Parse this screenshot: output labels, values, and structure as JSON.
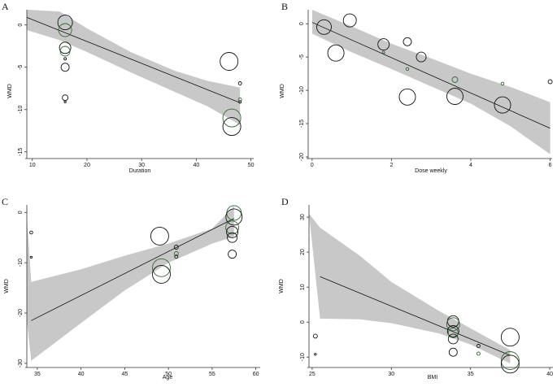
{
  "chart_data": [
    {
      "type": "scatter",
      "panel": "A",
      "xlabel": "Duration",
      "ylabel": "WMD",
      "xlim": [
        9,
        50.5
      ],
      "ylim": [
        -15.6,
        1.8
      ],
      "xticks": [
        10,
        20,
        30,
        40,
        50
      ],
      "yticks": [
        0,
        -5,
        -10,
        -15
      ],
      "fit": [
        [
          9,
          0.9
        ],
        [
          48,
          -9.2
        ]
      ],
      "band_upper": [
        [
          9,
          1.8
        ],
        [
          15,
          1.6
        ],
        [
          20,
          -0.4
        ],
        [
          28,
          -3.2
        ],
        [
          36,
          -5.4
        ],
        [
          42,
          -6.6
        ],
        [
          48,
          -7.4
        ]
      ],
      "band_lower": [
        [
          9,
          -0.6
        ],
        [
          15,
          -1.8
        ],
        [
          20,
          -3.2
        ],
        [
          28,
          -5.6
        ],
        [
          36,
          -7.9
        ],
        [
          42,
          -9.6
        ],
        [
          48,
          -11.8
        ]
      ],
      "points": [
        {
          "x": 16,
          "y": 0.3,
          "r": 9,
          "color": "black"
        },
        {
          "x": 16,
          "y": -0.6,
          "r": 8,
          "color": "green"
        },
        {
          "x": 16,
          "y": -2.7,
          "r": 7,
          "color": "black"
        },
        {
          "x": 16,
          "y": -3.1,
          "r": 6,
          "color": "green"
        },
        {
          "x": 16,
          "y": -4.0,
          "r": 1.5,
          "color": "black"
        },
        {
          "x": 16,
          "y": -5.0,
          "r": 5,
          "color": "black"
        },
        {
          "x": 16,
          "y": -8.6,
          "r": 3.5,
          "color": "black"
        },
        {
          "x": 16,
          "y": -9.1,
          "r": 1.2,
          "color": "black"
        },
        {
          "x": 46,
          "y": -4.3,
          "r": 11,
          "color": "black"
        },
        {
          "x": 46.5,
          "y": -11.0,
          "r": 11,
          "color": "green"
        },
        {
          "x": 46.5,
          "y": -12.0,
          "r": 11,
          "color": "black"
        },
        {
          "x": 48,
          "y": -6.9,
          "r": 2,
          "color": "black"
        },
        {
          "x": 48,
          "y": -8.8,
          "r": 2,
          "color": "green"
        },
        {
          "x": 48,
          "y": -9.1,
          "r": 1.5,
          "color": "black"
        }
      ]
    },
    {
      "type": "scatter",
      "panel": "B",
      "xlabel": "Dose weekly",
      "ylabel": "WMD",
      "xlim": [
        -0.1,
        6.05
      ],
      "ylim": [
        -20,
        2.1
      ],
      "xticks": [
        0,
        2,
        4,
        6
      ],
      "yticks": [
        0,
        -5,
        -10,
        -15,
        -20
      ],
      "fit": [
        [
          0,
          0.2
        ],
        [
          6,
          -15.7
        ]
      ],
      "band_upper": [
        [
          0,
          2.1
        ],
        [
          1,
          -0.4
        ],
        [
          2,
          -3.0
        ],
        [
          3,
          -5.2
        ],
        [
          4,
          -7.5
        ],
        [
          5,
          -9.5
        ],
        [
          6,
          -11.8
        ]
      ],
      "band_lower": [
        [
          0,
          -1.5
        ],
        [
          1,
          -4.3
        ],
        [
          2,
          -6.8
        ],
        [
          3,
          -9.4
        ],
        [
          4,
          -12.0
        ],
        [
          5,
          -15.4
        ],
        [
          6,
          -19.6
        ]
      ],
      "points": [
        {
          "x": 0.3,
          "y": -0.5,
          "r": 9,
          "color": "black"
        },
        {
          "x": 0.95,
          "y": 0.5,
          "r": 8,
          "color": "black"
        },
        {
          "x": 0.6,
          "y": -4.4,
          "r": 10,
          "color": "black"
        },
        {
          "x": 1.8,
          "y": -3.1,
          "r": 7,
          "color": "black"
        },
        {
          "x": 1.8,
          "y": -4.3,
          "r": 1.5,
          "color": "green"
        },
        {
          "x": 2.4,
          "y": -2.7,
          "r": 5,
          "color": "black"
        },
        {
          "x": 2.4,
          "y": -6.8,
          "r": 1.8,
          "color": "green"
        },
        {
          "x": 2.4,
          "y": -11.0,
          "r": 10,
          "color": "black"
        },
        {
          "x": 2.75,
          "y": -5.0,
          "r": 6,
          "color": "black"
        },
        {
          "x": 3.6,
          "y": -8.4,
          "r": 3.5,
          "color": "green"
        },
        {
          "x": 3.6,
          "y": -10.9,
          "r": 10,
          "color": "black"
        },
        {
          "x": 4.8,
          "y": -9.0,
          "r": 1.8,
          "color": "green"
        },
        {
          "x": 4.8,
          "y": -12.2,
          "r": 10,
          "color": "black"
        },
        {
          "x": 6.0,
          "y": -8.7,
          "r": 2.5,
          "color": "black"
        }
      ]
    },
    {
      "type": "scatter",
      "panel": "C",
      "xlabel": "Age",
      "ylabel": "WMD",
      "xlim": [
        33.8,
        60.5
      ],
      "ylim": [
        -30.5,
        1.5
      ],
      "xticks": [
        35,
        40,
        45,
        50,
        55,
        60
      ],
      "yticks": [
        0,
        -10,
        -20,
        -30
      ],
      "fit": [
        [
          34.3,
          -21.5
        ],
        [
          57.5,
          -1.2
        ]
      ],
      "band_upper": [
        [
          33.8,
          -0.5
        ],
        [
          34.3,
          -13.8
        ],
        [
          40,
          -11.3
        ],
        [
          45,
          -8.6
        ],
        [
          50,
          -6.2
        ],
        [
          55,
          -3.2
        ],
        [
          57.5,
          1.2
        ]
      ],
      "band_lower": [
        [
          33.8,
          -21.5
        ],
        [
          34.3,
          -29.5
        ],
        [
          40,
          -22.0
        ],
        [
          45,
          -15.5
        ],
        [
          50,
          -10.0
        ],
        [
          55,
          -6.2
        ],
        [
          57.5,
          -4.8
        ]
      ],
      "points": [
        {
          "x": 34.3,
          "y": -4.0,
          "r": 1.8,
          "color": "black"
        },
        {
          "x": 34.3,
          "y": -8.9,
          "r": 1.2,
          "color": "black"
        },
        {
          "x": 49,
          "y": -4.7,
          "r": 11,
          "color": "black"
        },
        {
          "x": 49.2,
          "y": -11.0,
          "r": 11,
          "color": "green"
        },
        {
          "x": 49.2,
          "y": -12.3,
          "r": 11,
          "color": "black"
        },
        {
          "x": 50.9,
          "y": -6.9,
          "r": 2.5,
          "color": "black"
        },
        {
          "x": 50.9,
          "y": -8.2,
          "r": 2.5,
          "color": "green"
        },
        {
          "x": 50.9,
          "y": -8.8,
          "r": 2,
          "color": "black"
        },
        {
          "x": 57.5,
          "y": -0.1,
          "r": 9,
          "color": "green"
        },
        {
          "x": 57.5,
          "y": -0.9,
          "r": 10,
          "color": "black"
        },
        {
          "x": 57.3,
          "y": -3.0,
          "r": 8,
          "color": "green"
        },
        {
          "x": 57.3,
          "y": -3.9,
          "r": 7,
          "color": "black"
        },
        {
          "x": 57.3,
          "y": -5.0,
          "r": 6,
          "color": "black"
        },
        {
          "x": 57.3,
          "y": -8.3,
          "r": 5,
          "color": "black"
        }
      ]
    },
    {
      "type": "scatter",
      "panel": "D",
      "xlabel": "BMI",
      "ylabel": "WMD",
      "xlim": [
        24.8,
        40.2
      ],
      "ylim": [
        -12.5,
        33.5
      ],
      "xticks": [
        25,
        30,
        35,
        40
      ],
      "yticks": [
        30,
        20,
        10,
        0,
        -10
      ],
      "fit": [
        [
          25.5,
          13.0
        ],
        [
          37.5,
          -9.5
        ]
      ],
      "band_upper": [
        [
          24.8,
          31.0
        ],
        [
          25.5,
          27.0
        ],
        [
          28,
          19.0
        ],
        [
          30,
          11.5
        ],
        [
          33,
          3.2
        ],
        [
          35,
          -1.8
        ],
        [
          37.5,
          -8.0
        ]
      ],
      "band_lower": [
        [
          24.8,
          31.0
        ],
        [
          25.5,
          1.0
        ],
        [
          28,
          0.8
        ],
        [
          30,
          -0.3
        ],
        [
          33,
          -3.2
        ],
        [
          35,
          -6.4
        ],
        [
          37.5,
          -11.8
        ]
      ],
      "points": [
        {
          "x": 25.2,
          "y": -4.0,
          "r": 2.5,
          "color": "black"
        },
        {
          "x": 25.2,
          "y": -9.2,
          "r": 1.2,
          "color": "black"
        },
        {
          "x": 33.9,
          "y": 0.2,
          "r": 7,
          "color": "black"
        },
        {
          "x": 33.9,
          "y": -0.6,
          "r": 8,
          "color": "green"
        },
        {
          "x": 33.9,
          "y": -2.6,
          "r": 7,
          "color": "black"
        },
        {
          "x": 33.9,
          "y": -3.1,
          "r": 6,
          "color": "green"
        },
        {
          "x": 33.9,
          "y": -4.8,
          "r": 6,
          "color": "black"
        },
        {
          "x": 33.9,
          "y": -8.6,
          "r": 5,
          "color": "black"
        },
        {
          "x": 35.5,
          "y": -6.8,
          "r": 2,
          "color": "black"
        },
        {
          "x": 35.5,
          "y": -9.0,
          "r": 2,
          "color": "green"
        },
        {
          "x": 37.5,
          "y": -4.3,
          "r": 11,
          "color": "black"
        },
        {
          "x": 37.5,
          "y": -11.0,
          "r": 11,
          "color": "green"
        },
        {
          "x": 37.5,
          "y": -12.0,
          "r": 11,
          "color": "black"
        }
      ]
    }
  ],
  "colors": {
    "band": "#c8c8c8",
    "line": "#111111",
    "point_black": "#111111",
    "point_green": "#2e6b2e"
  }
}
